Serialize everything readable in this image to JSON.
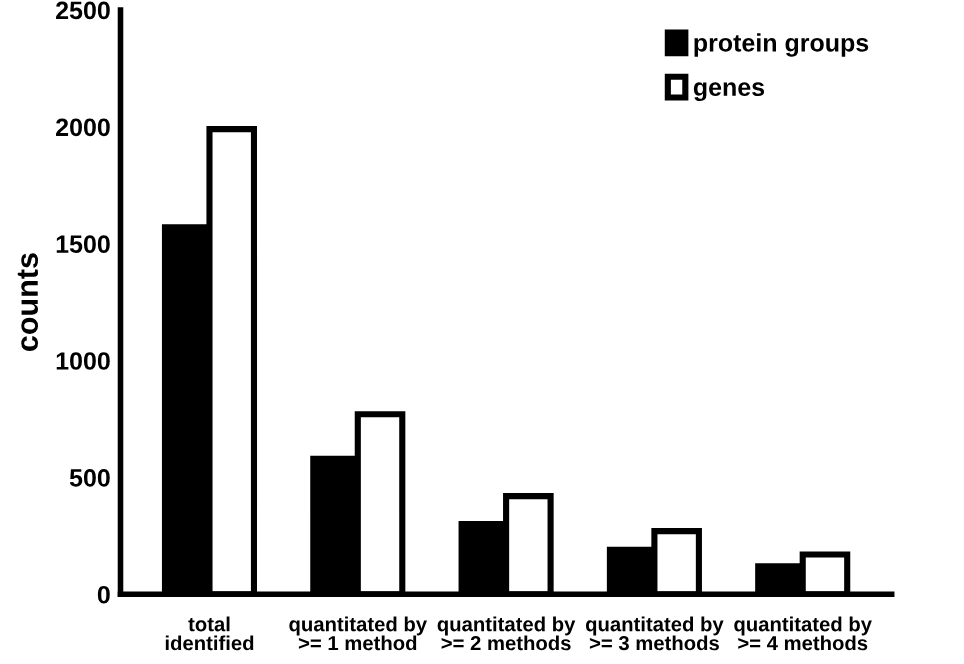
{
  "chart_data": {
    "type": "bar",
    "ylabel": "counts",
    "categories": [
      "total\nidentified",
      "quantitated by\n>= 1 method",
      "quantitated by\n>= 2 methods",
      "quantitated by\n>= 3 methods",
      "quantitated by\n>= 4 methods"
    ],
    "series": [
      {
        "name": "protein groups",
        "color": "#000000",
        "values": [
          1570,
          580,
          300,
          190,
          120
        ]
      },
      {
        "name": "genes",
        "color": "#ffffff",
        "values": [
          1990,
          770,
          420,
          270,
          170
        ]
      }
    ],
    "ylim": [
      0,
      2500
    ],
    "yticks": [
      0,
      500,
      1000,
      1500,
      2000,
      2500
    ],
    "grid": false,
    "legend": "top right"
  }
}
